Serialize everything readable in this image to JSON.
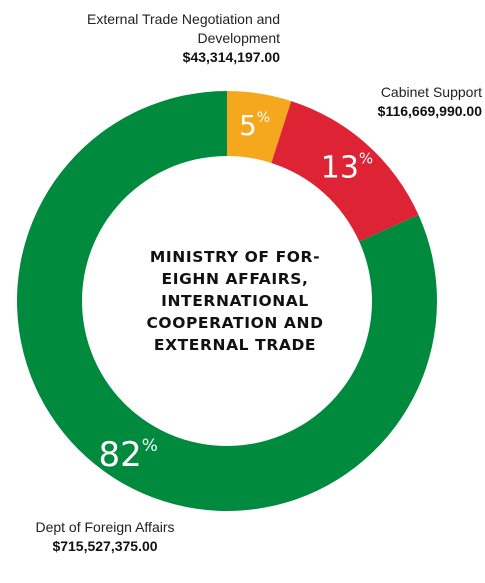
{
  "chart_data": {
    "type": "pie",
    "subtype": "donut",
    "center_title": "MINISTRY OF FOR-EIGHN AFFAIRS, INTERNATIONAL COOPERATION AND EXTERNAL TRADE",
    "slices": [
      {
        "name": "External Trade Negotiation and Development",
        "value": 43314197.0,
        "amount_label": "$43,314,197.00",
        "percent_label": "5",
        "color": "#f5a81d"
      },
      {
        "name": "Cabinet Support",
        "value": 116669990.0,
        "amount_label": "$116,669,990.00",
        "percent_label": "13",
        "color": "#de2334"
      },
      {
        "name": "Dept of Foreign Affairs",
        "value": 715527375.0,
        "amount_label": "$715,527,375.00",
        "percent_label": "82",
        "color": "#008a3e"
      }
    ],
    "percent_suffix": "%"
  }
}
